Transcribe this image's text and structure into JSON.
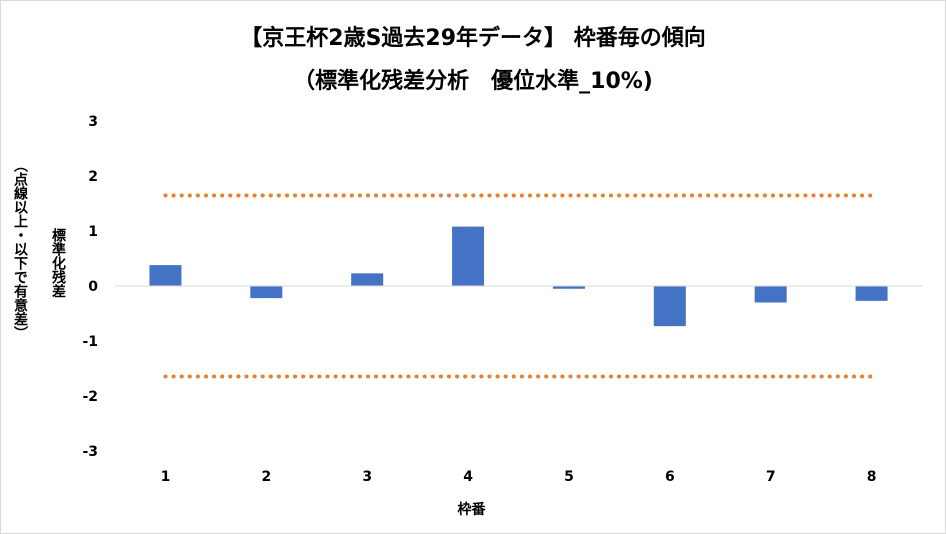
{
  "chart_data": {
    "type": "bar",
    "title": "【京王杯2歳S過去29年データ】 枠番毎の傾向",
    "subtitle": "（標準化残差分析　優位水準_10%)",
    "xlabel": "枠番",
    "ylabel": "標準化残差",
    "ylabel_note": "（点線以上・以下で有意差）",
    "categories": [
      "1",
      "2",
      "3",
      "4",
      "5",
      "6",
      "7",
      "8"
    ],
    "values": [
      0.38,
      -0.22,
      0.23,
      1.08,
      -0.05,
      -0.73,
      -0.3,
      -0.27
    ],
    "ylim": [
      -3,
      3
    ],
    "yticks": [
      "3",
      "2",
      "1",
      "0",
      "-1",
      "-2",
      "-3"
    ],
    "reference_lines": [
      1.645,
      -1.645
    ],
    "grid": false,
    "colors": {
      "bar": "#4472c4",
      "reference_line": "#ed7d31",
      "axis": "#d9d9d9"
    }
  }
}
